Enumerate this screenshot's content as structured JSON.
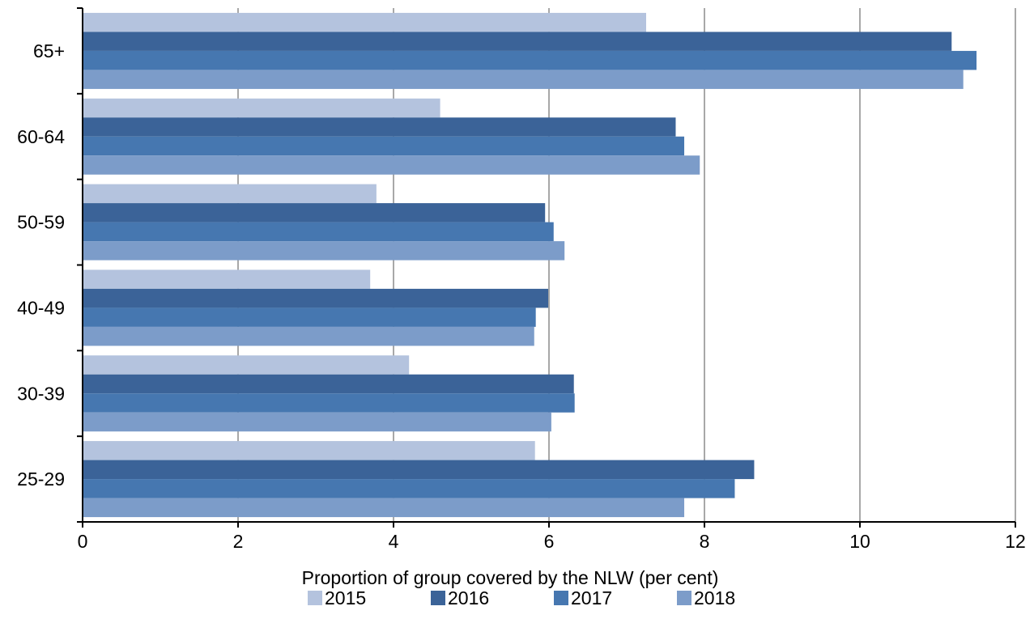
{
  "chart_data": {
    "type": "bar",
    "orientation": "horizontal",
    "categories": [
      "65+",
      "60-64",
      "50-59",
      "40-49",
      "30-39",
      "25-29"
    ],
    "series": [
      {
        "name": "2015",
        "color": "#b4c3de",
        "values": [
          7.25,
          4.6,
          3.78,
          3.7,
          4.2,
          5.82
        ]
      },
      {
        "name": "2016",
        "color": "#3b6398",
        "values": [
          11.18,
          7.63,
          5.95,
          5.99,
          6.32,
          8.64
        ]
      },
      {
        "name": "2017",
        "color": "#4677b0",
        "values": [
          11.5,
          7.74,
          6.06,
          5.83,
          6.33,
          8.39
        ]
      },
      {
        "name": "2018",
        "color": "#7c9cc9",
        "values": [
          11.33,
          7.94,
          6.2,
          5.81,
          6.03,
          7.74
        ]
      }
    ],
    "xlim": [
      0,
      12
    ],
    "x_ticks": [
      0,
      2,
      4,
      6,
      8,
      10,
      12
    ],
    "xlabel": "Proportion of group covered by the NLW (per cent)",
    "ylabel": "",
    "title": "",
    "grid": "vertical",
    "legend_position": "bottom"
  }
}
